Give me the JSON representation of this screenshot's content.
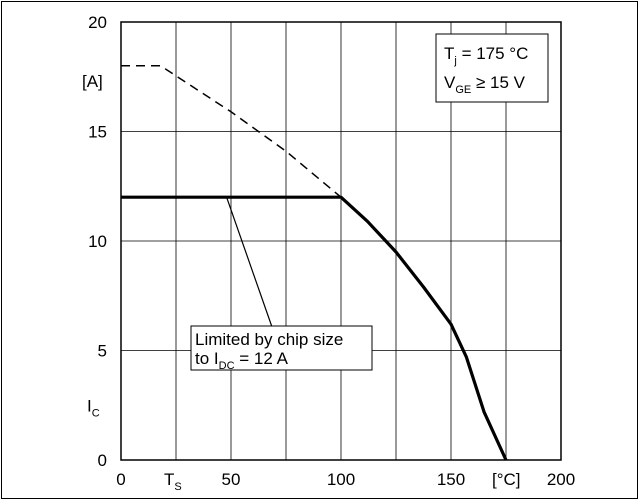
{
  "chart_data": {
    "type": "line",
    "xlim": [
      0,
      200
    ],
    "ylim": [
      0,
      20
    ],
    "x_ticks": [
      "0",
      "50",
      "100",
      "150",
      "200"
    ],
    "y_ticks": [
      "0",
      "5",
      "10",
      "15",
      "20"
    ],
    "x_extra_labels": {
      "ts": {
        "main": "T",
        "sub": "S",
        "x": 25
      },
      "unit": {
        "text": "[°C]",
        "x": 175
      }
    },
    "y_unit": "[A]",
    "y_label": {
      "main": "I",
      "sub": "C"
    },
    "grid": true,
    "series": [
      {
        "style": "dashed",
        "points": [
          [
            0,
            18
          ],
          [
            18,
            18
          ],
          [
            50,
            15.9
          ],
          [
            75,
            14.1
          ],
          [
            100,
            12
          ]
        ]
      },
      {
        "style": "solid-thick",
        "points": [
          [
            0,
            12
          ],
          [
            100,
            12
          ],
          [
            112,
            10.9
          ],
          [
            125,
            9.5
          ],
          [
            137.5,
            7.9
          ],
          [
            150,
            6.2
          ],
          [
            157,
            4.7
          ],
          [
            165,
            2.2
          ],
          [
            175,
            0
          ]
        ]
      }
    ],
    "legend_box": {
      "line1": {
        "main": "T",
        "sub": "j",
        "rest": " = 175 °C"
      },
      "line2": {
        "main": "V",
        "sub": "GE",
        "rest": " ≥ 15 V"
      }
    },
    "annotation": {
      "line1": "Limited by chip size",
      "line2": {
        "main": "to I",
        "sub": "DC",
        "rest": " = 12 A"
      },
      "target": [
        48,
        12
      ]
    }
  }
}
